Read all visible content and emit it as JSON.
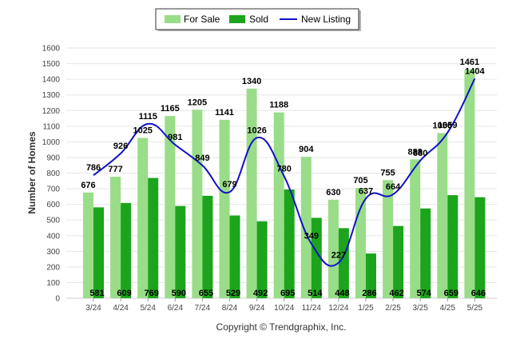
{
  "chart_data": {
    "type": "bar",
    "ylabel": "Number of Homes",
    "ylim": [
      0,
      1600
    ],
    "yticks": [
      0,
      100,
      200,
      300,
      400,
      500,
      600,
      700,
      800,
      900,
      1000,
      1100,
      1200,
      1300,
      1400,
      1500,
      1600
    ],
    "categories": [
      "3/24",
      "4/24",
      "5/24",
      "6/24",
      "7/24",
      "8/24",
      "9/24",
      "10/24",
      "11/24",
      "12/24",
      "1/25",
      "2/25",
      "3/25",
      "4/25",
      "5/25"
    ],
    "series": [
      {
        "name": "For Sale",
        "type": "bar",
        "color": "#99dd88",
        "values": [
          676,
          777,
          1025,
          1165,
          1205,
          1141,
          1340,
          1188,
          904,
          630,
          705,
          755,
          888,
          1056,
          1461
        ]
      },
      {
        "name": "Sold",
        "type": "bar",
        "color": "#1ca51c",
        "values": [
          581,
          609,
          769,
          590,
          655,
          529,
          492,
          695,
          514,
          448,
          286,
          462,
          574,
          659,
          646
        ]
      },
      {
        "name": "New Listing",
        "type": "line",
        "color": "#1010cc",
        "values": [
          786,
          926,
          1115,
          981,
          849,
          679,
          1026,
          780,
          349,
          227,
          637,
          664,
          880,
          1059,
          1404
        ]
      }
    ],
    "legend_position": "top-center",
    "grid": true
  },
  "footer": {
    "copyright": "Copyright © Trendgraphix, Inc."
  }
}
